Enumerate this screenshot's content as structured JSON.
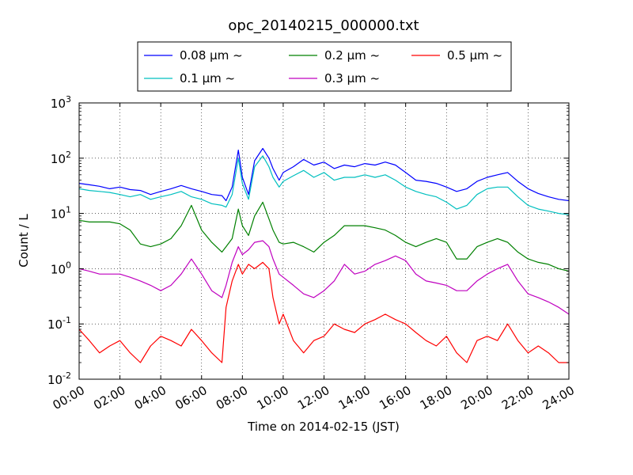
{
  "chart_data": {
    "type": "line",
    "title": "opc_20140215_000000.txt",
    "xlabel": "Time on 2014-02-15 (JST)",
    "ylabel": "Count / L",
    "x_unit": "hour of day",
    "xlim": [
      0,
      24
    ],
    "yscale": "log",
    "ylim": [
      0.01,
      1000
    ],
    "grid": true,
    "legend_position": "top",
    "x_ticks": [
      {
        "value": 0,
        "label": "00:00"
      },
      {
        "value": 2,
        "label": "02:00"
      },
      {
        "value": 4,
        "label": "04:00"
      },
      {
        "value": 6,
        "label": "06:00"
      },
      {
        "value": 8,
        "label": "08:00"
      },
      {
        "value": 10,
        "label": "10:00"
      },
      {
        "value": 12,
        "label": "12:00"
      },
      {
        "value": 14,
        "label": "14:00"
      },
      {
        "value": 16,
        "label": "16:00"
      },
      {
        "value": 18,
        "label": "18:00"
      },
      {
        "value": 20,
        "label": "20:00"
      },
      {
        "value": 22,
        "label": "22:00"
      },
      {
        "value": 24,
        "label": "24:00"
      }
    ],
    "y_ticks": [
      {
        "value": 0.01,
        "base": "10",
        "exp": "-2"
      },
      {
        "value": 0.1,
        "base": "10",
        "exp": "-1"
      },
      {
        "value": 1,
        "base": "10",
        "exp": "0"
      },
      {
        "value": 10,
        "base": "10",
        "exp": "1"
      },
      {
        "value": 100,
        "base": "10",
        "exp": "2"
      },
      {
        "value": 1000,
        "base": "10",
        "exp": "3"
      }
    ],
    "series": [
      {
        "name": "0.08 μm ~",
        "color": "#0000ff",
        "x": [
          0,
          0.5,
          1,
          1.5,
          2,
          2.5,
          3,
          3.5,
          4,
          4.5,
          5,
          5.5,
          6,
          6.5,
          7,
          7.2,
          7.5,
          7.8,
          8,
          8.3,
          8.6,
          9,
          9.3,
          9.5,
          9.8,
          10,
          10.5,
          11,
          11.5,
          12,
          12.5,
          13,
          13.5,
          14,
          14.5,
          15,
          15.5,
          16,
          16.5,
          17,
          17.5,
          18,
          18.5,
          19,
          19.5,
          20,
          20.5,
          21,
          21.5,
          22,
          22.5,
          23,
          23.5,
          24
        ],
        "y": [
          35,
          33,
          31,
          28,
          30,
          27,
          26,
          22,
          25,
          28,
          32,
          28,
          25,
          22,
          21,
          17,
          30,
          140,
          45,
          22,
          90,
          150,
          100,
          65,
          40,
          55,
          70,
          95,
          75,
          85,
          65,
          75,
          70,
          80,
          75,
          85,
          75,
          55,
          40,
          38,
          35,
          30,
          25,
          28,
          38,
          45,
          50,
          55,
          38,
          28,
          23,
          20,
          18,
          17
        ]
      },
      {
        "name": "0.1 μm ~",
        "color": "#00bfbf",
        "x": [
          0,
          0.5,
          1,
          1.5,
          2,
          2.5,
          3,
          3.5,
          4,
          4.5,
          5,
          5.5,
          6,
          6.5,
          7,
          7.2,
          7.5,
          7.8,
          8,
          8.3,
          8.6,
          9,
          9.3,
          9.5,
          9.8,
          10,
          10.5,
          11,
          11.5,
          12,
          12.5,
          13,
          13.5,
          14,
          14.5,
          15,
          15.5,
          16,
          16.5,
          17,
          17.5,
          18,
          18.5,
          19,
          19.5,
          20,
          20.5,
          21,
          21.5,
          22,
          22.5,
          23,
          23.5,
          24
        ],
        "y": [
          28,
          26,
          25,
          24,
          22,
          20,
          22,
          18,
          20,
          22,
          25,
          20,
          18,
          15,
          14,
          13,
          22,
          100,
          35,
          18,
          70,
          110,
          70,
          45,
          30,
          38,
          48,
          60,
          45,
          55,
          40,
          45,
          45,
          50,
          45,
          50,
          40,
          30,
          25,
          22,
          20,
          16,
          12,
          14,
          22,
          28,
          30,
          30,
          20,
          14,
          12,
          11,
          10,
          9.5
        ]
      },
      {
        "name": "0.2 μm ~",
        "color": "#008000",
        "x": [
          0,
          0.5,
          1,
          1.5,
          2,
          2.5,
          3,
          3.5,
          4,
          4.5,
          5,
          5.5,
          6,
          6.5,
          7,
          7.2,
          7.5,
          7.8,
          8,
          8.3,
          8.6,
          9,
          9.3,
          9.5,
          9.8,
          10,
          10.5,
          11,
          11.5,
          12,
          12.5,
          13,
          13.5,
          14,
          14.5,
          15,
          15.5,
          16,
          16.5,
          17,
          17.5,
          18,
          18.5,
          19,
          19.5,
          20,
          20.5,
          21,
          21.5,
          22,
          22.5,
          23,
          23.5,
          24
        ],
        "y": [
          7.5,
          7,
          7,
          7,
          6.5,
          5,
          2.8,
          2.5,
          2.8,
          3.5,
          6,
          14,
          5,
          3,
          2,
          2.5,
          3.5,
          12,
          6,
          4,
          9,
          16,
          8,
          5,
          3,
          2.8,
          3,
          2.5,
          2,
          3,
          4,
          6,
          6,
          6,
          5.5,
          5,
          4,
          3,
          2.5,
          3,
          3.5,
          3,
          1.5,
          1.5,
          2.5,
          3,
          3.5,
          3,
          2,
          1.5,
          1.3,
          1.2,
          1,
          0.9
        ]
      },
      {
        "name": "0.3 μm ~",
        "color": "#bf00bf",
        "x": [
          0,
          0.5,
          1,
          1.5,
          2,
          2.5,
          3,
          3.5,
          4,
          4.5,
          5,
          5.5,
          6,
          6.5,
          7,
          7.2,
          7.5,
          7.8,
          8,
          8.3,
          8.6,
          9,
          9.3,
          9.5,
          9.8,
          10,
          10.5,
          11,
          11.5,
          12,
          12.5,
          13,
          13.5,
          14,
          14.5,
          15,
          15.5,
          16,
          16.5,
          17,
          17.5,
          18,
          18.5,
          19,
          19.5,
          20,
          20.5,
          21,
          21.5,
          22,
          22.5,
          23,
          23.5,
          24
        ],
        "y": [
          1,
          0.9,
          0.8,
          0.8,
          0.8,
          0.7,
          0.6,
          0.5,
          0.4,
          0.5,
          0.8,
          1.5,
          0.8,
          0.4,
          0.3,
          0.5,
          1.3,
          2.5,
          1.8,
          2.2,
          3,
          3.2,
          2.5,
          1.5,
          0.8,
          0.7,
          0.5,
          0.35,
          0.3,
          0.4,
          0.6,
          1.2,
          0.8,
          0.9,
          1.2,
          1.4,
          1.7,
          1.4,
          0.8,
          0.6,
          0.55,
          0.5,
          0.4,
          0.4,
          0.6,
          0.8,
          1,
          1.2,
          0.6,
          0.35,
          0.3,
          0.25,
          0.2,
          0.15
        ]
      },
      {
        "name": "0.5 μm ~",
        "color": "#ff0000",
        "x": [
          0,
          0.5,
          1,
          1.5,
          2,
          2.5,
          3,
          3.5,
          4,
          4.5,
          5,
          5.5,
          6,
          6.5,
          7,
          7.2,
          7.5,
          7.8,
          8,
          8.3,
          8.6,
          9,
          9.3,
          9.5,
          9.8,
          10,
          10.5,
          11,
          11.5,
          12,
          12.5,
          13,
          13.5,
          14,
          14.5,
          15,
          15.5,
          16,
          16.5,
          17,
          17.5,
          18,
          18.5,
          19,
          19.5,
          20,
          20.5,
          21,
          21.5,
          22,
          22.5,
          23,
          23.5,
          24
        ],
        "y": [
          0.08,
          0.05,
          0.03,
          0.04,
          0.05,
          0.03,
          0.02,
          0.04,
          0.06,
          0.05,
          0.04,
          0.08,
          0.05,
          0.03,
          0.02,
          0.2,
          0.6,
          1.2,
          0.8,
          1.2,
          1.0,
          1.3,
          1.0,
          0.3,
          0.1,
          0.15,
          0.05,
          0.03,
          0.05,
          0.06,
          0.1,
          0.08,
          0.07,
          0.1,
          0.12,
          0.15,
          0.12,
          0.1,
          0.07,
          0.05,
          0.04,
          0.06,
          0.03,
          0.02,
          0.05,
          0.06,
          0.05,
          0.1,
          0.05,
          0.03,
          0.04,
          0.03,
          0.02,
          0.02
        ]
      }
    ]
  }
}
